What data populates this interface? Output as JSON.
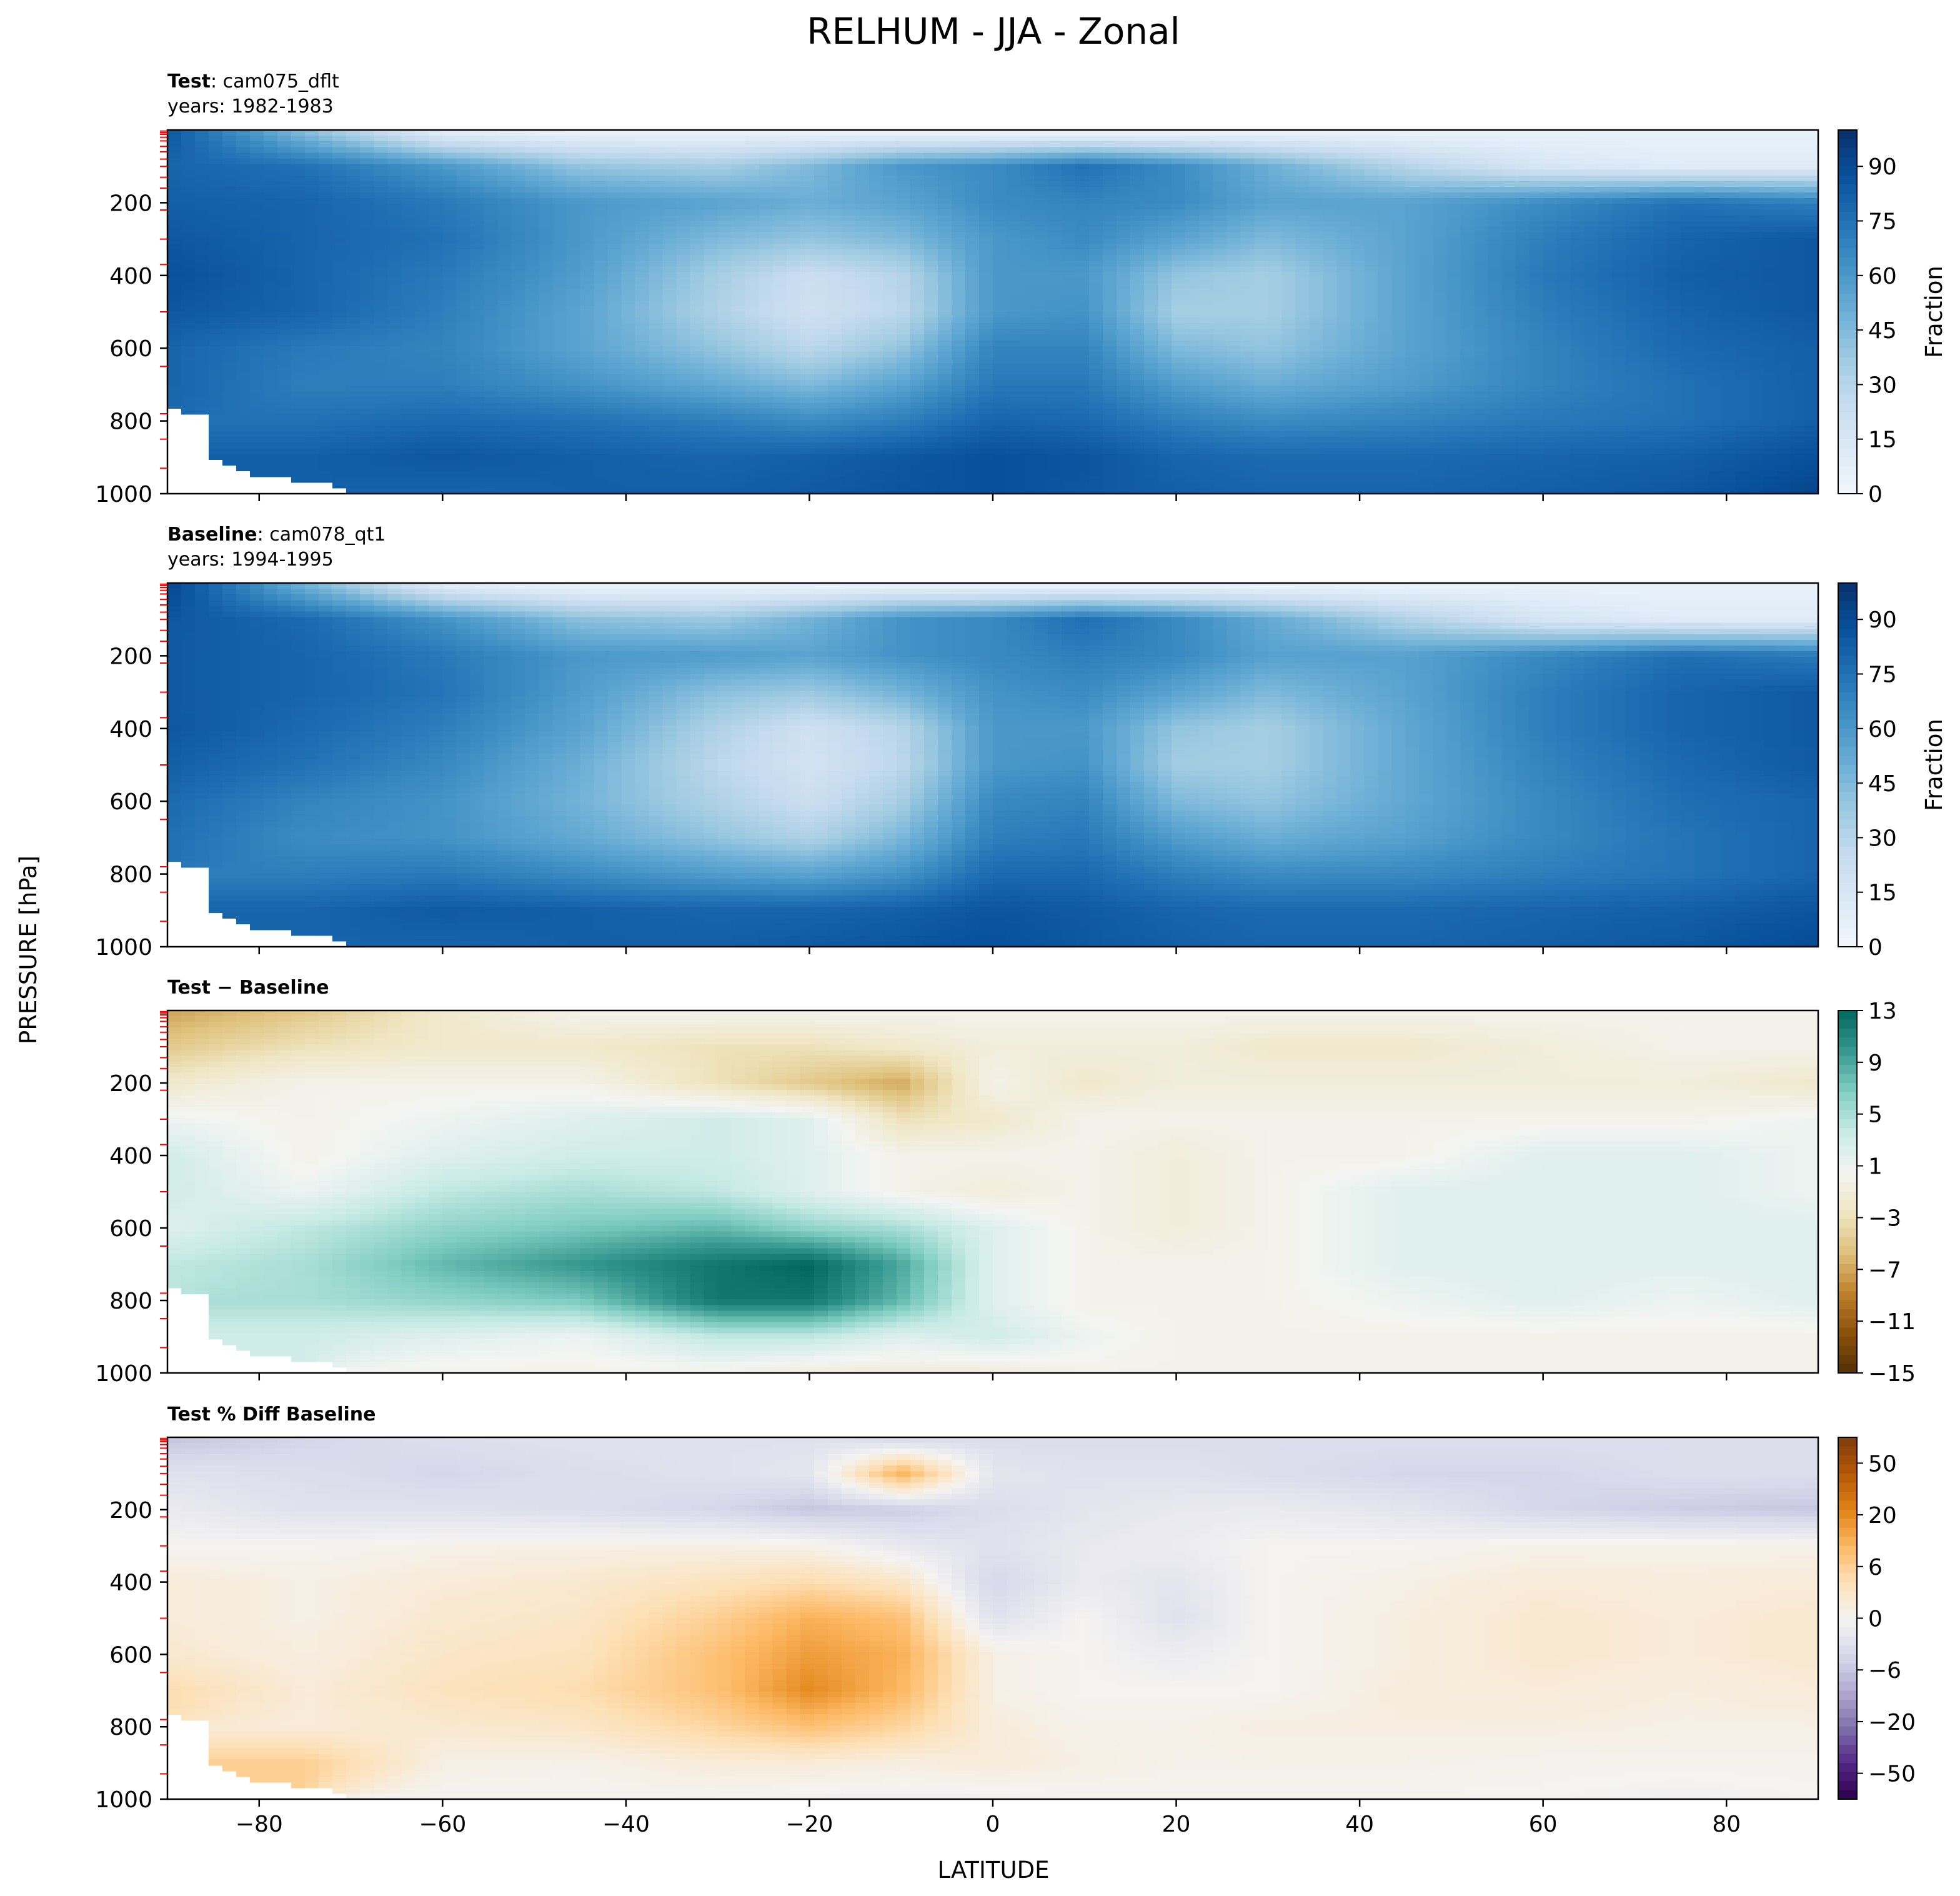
{
  "title": "RELHUM - JJA - Zonal",
  "shared_ylabel": "PRESSURE [hPa]",
  "shared_xlabel": "LATITUDE",
  "x_ticks": [
    -80,
    -60,
    -40,
    -20,
    0,
    20,
    40,
    60,
    80
  ],
  "x_tick_labels": [
    "−80",
    "−60",
    "−40",
    "−20",
    "0",
    "20",
    "40",
    "60",
    "80"
  ],
  "y_ticks": [
    200,
    400,
    600,
    800,
    1000
  ],
  "y_tick_labels": [
    "200",
    "400",
    "600",
    "800",
    "1000"
  ],
  "panels": [
    {
      "id": "test",
      "label_bold": "Test",
      "label_rest": ": cam075_dflt",
      "label_line2": "years: 1982-1983",
      "colorbar_label": "Fraction",
      "colorbar_tick_labels": [
        "0",
        "15",
        "30",
        "45",
        "60",
        "75",
        "90"
      ],
      "colormap": [
        "#f1f6fc",
        "#dbe9f6",
        "#c6dbef",
        "#9ecae1",
        "#6baed6",
        "#4292c6",
        "#2171b5",
        "#08519c",
        "#08306b"
      ]
    },
    {
      "id": "baseline",
      "label_bold": "Baseline",
      "label_rest": ": cam078_qt1",
      "label_line2": "years: 1994-1995",
      "colorbar_label": "Fraction",
      "colorbar_tick_labels": [
        "0",
        "15",
        "30",
        "45",
        "60",
        "75",
        "90"
      ],
      "colormap": [
        "#f1f6fc",
        "#dbe9f6",
        "#c6dbef",
        "#9ecae1",
        "#6baed6",
        "#4292c6",
        "#2171b5",
        "#08519c",
        "#08306b"
      ]
    },
    {
      "id": "diff",
      "label_bold": "Test − Baseline",
      "label_rest": "",
      "label_line2": "",
      "colorbar_label": "",
      "colorbar_tick_labels": [
        "−15",
        "−11",
        "−7",
        "−3",
        "1",
        "5",
        "9",
        "13"
      ],
      "colormap": [
        "#543005",
        "#8c510a",
        "#bf812d",
        "#dfc27d",
        "#f0e6c4",
        "#f3f4f2",
        "#c7eae5",
        "#80cdc1",
        "#35978f",
        "#01665e"
      ]
    },
    {
      "id": "pctdiff",
      "label_bold": "Test % Diff Baseline",
      "label_rest": "",
      "label_line2": "",
      "colorbar_label": "",
      "colorbar_tick_labels": [
        "−50",
        "−20",
        "−6",
        "0",
        "6",
        "20",
        "50"
      ],
      "colormap": [
        "#2d004b",
        "#542788",
        "#8073ac",
        "#b2abd2",
        "#d8daeb",
        "#f4f3f1",
        "#fde0b6",
        "#fdb863",
        "#e08214",
        "#b35806",
        "#7f3b08"
      ]
    }
  ],
  "chart_data": [
    {
      "type": "heatmap",
      "title": "Test: cam075_dflt, years: 1982-1983",
      "xlabel": "LATITUDE",
      "ylabel": "PRESSURE [hPa]",
      "xlim": [
        -90,
        90
      ],
      "ylim": [
        1000,
        0
      ],
      "colorbar_range": [
        0,
        100
      ],
      "colorbar_label": "Fraction",
      "x": [
        -90,
        -75,
        -60,
        -45,
        -30,
        -20,
        -10,
        0,
        10,
        20,
        30,
        45,
        60,
        75,
        90
      ],
      "y": [
        10,
        100,
        200,
        300,
        400,
        500,
        600,
        700,
        800,
        900,
        1000
      ],
      "z": [
        [
          85,
          45,
          10,
          5,
          5,
          5,
          5,
          5,
          5,
          5,
          5,
          5,
          5,
          5,
          5
        ],
        [
          80,
          75,
          60,
          40,
          35,
          45,
          60,
          65,
          75,
          65,
          50,
          30,
          15,
          10,
          10
        ],
        [
          82,
          80,
          72,
          60,
          55,
          50,
          55,
          65,
          68,
          65,
          55,
          55,
          65,
          75,
          70
        ],
        [
          85,
          80,
          75,
          60,
          45,
          40,
          45,
          60,
          65,
          55,
          45,
          55,
          70,
          80,
          85
        ],
        [
          88,
          80,
          72,
          58,
          35,
          22,
          30,
          60,
          60,
          40,
          35,
          55,
          72,
          82,
          85
        ],
        [
          85,
          80,
          70,
          55,
          32,
          20,
          28,
          60,
          62,
          35,
          35,
          55,
          70,
          80,
          85
        ],
        [
          80,
          72,
          68,
          55,
          40,
          28,
          40,
          68,
          68,
          45,
          40,
          55,
          68,
          78,
          82
        ],
        [
          80,
          70,
          70,
          62,
          52,
          45,
          55,
          72,
          72,
          58,
          50,
          58,
          68,
          75,
          82
        ],
        [
          null,
          75,
          78,
          75,
          70,
          65,
          70,
          80,
          78,
          70,
          65,
          68,
          72,
          75,
          82
        ],
        [
          null,
          82,
          85,
          82,
          80,
          82,
          85,
          88,
          86,
          80,
          78,
          78,
          80,
          82,
          88
        ],
        [
          null,
          null,
          80,
          82,
          82,
          84,
          86,
          88,
          85,
          82,
          80,
          80,
          82,
          85,
          92
        ]
      ]
    },
    {
      "type": "heatmap",
      "title": "Baseline: cam078_qt1, years: 1994-1995",
      "xlabel": "LATITUDE",
      "ylabel": "PRESSURE [hPa]",
      "xlim": [
        -90,
        90
      ],
      "ylim": [
        1000,
        0
      ],
      "colorbar_range": [
        0,
        100
      ],
      "colorbar_label": "Fraction",
      "x": [
        -90,
        -75,
        -60,
        -45,
        -30,
        -20,
        -10,
        0,
        10,
        20,
        30,
        45,
        60,
        75,
        90
      ],
      "y": [
        10,
        100,
        200,
        300,
        400,
        500,
        600,
        700,
        800,
        900,
        1000
      ],
      "z": [
        [
          92,
          50,
          12,
          5,
          5,
          5,
          5,
          5,
          5,
          5,
          5,
          5,
          5,
          5,
          5
        ],
        [
          85,
          78,
          62,
          42,
          38,
          48,
          62,
          66,
          76,
          66,
          52,
          32,
          16,
          10,
          10
        ],
        [
          84,
          80,
          72,
          60,
          58,
          55,
          62,
          66,
          70,
          66,
          56,
          56,
          66,
          76,
          72
        ],
        [
          84,
          80,
          74,
          58,
          42,
          38,
          48,
          62,
          65,
          55,
          45,
          55,
          70,
          80,
          84
        ],
        [
          85,
          78,
          70,
          55,
          32,
          20,
          30,
          60,
          60,
          40,
          35,
          53,
          70,
          80,
          84
        ],
        [
          82,
          75,
          66,
          50,
          28,
          18,
          28,
          60,
          62,
          36,
          35,
          53,
          68,
          78,
          84
        ],
        [
          78,
          68,
          62,
          48,
          32,
          22,
          35,
          66,
          68,
          45,
          40,
          53,
          66,
          76,
          80
        ],
        [
          76,
          65,
          62,
          52,
          40,
          32,
          46,
          70,
          72,
          58,
          50,
          56,
          66,
          74,
          80
        ],
        [
          null,
          70,
          72,
          65,
          58,
          55,
          62,
          78,
          78,
          70,
          65,
          66,
          70,
          74,
          80
        ],
        [
          null,
          80,
          84,
          82,
          80,
          80,
          82,
          86,
          84,
          80,
          78,
          78,
          80,
          82,
          86
        ],
        [
          null,
          null,
          80,
          82,
          82,
          84,
          86,
          88,
          85,
          82,
          80,
          80,
          82,
          85,
          90
        ]
      ]
    },
    {
      "type": "heatmap",
      "title": "Test − Baseline",
      "xlabel": "LATITUDE",
      "ylabel": "PRESSURE [hPa]",
      "xlim": [
        -90,
        90
      ],
      "ylim": [
        1000,
        0
      ],
      "colorbar_range": [
        -15,
        13
      ],
      "x": [
        -90,
        -75,
        -60,
        -45,
        -30,
        -20,
        -10,
        0,
        10,
        20,
        30,
        45,
        60,
        75,
        90
      ],
      "y": [
        10,
        100,
        200,
        300,
        400,
        500,
        600,
        700,
        800,
        900,
        1000
      ],
      "z": [
        [
          -7,
          -5,
          -2,
          0,
          0,
          0,
          0,
          0,
          0,
          0,
          0,
          0,
          0,
          0,
          0
        ],
        [
          -5,
          -3,
          -2,
          -2,
          -3,
          -3,
          -2,
          -1,
          -1,
          -1,
          -2,
          -2,
          -1,
          0,
          0
        ],
        [
          -2,
          0,
          0,
          0,
          -3,
          -5,
          -7,
          0,
          -2,
          -1,
          -1,
          -1,
          -1,
          -1,
          -2
        ],
        [
          1,
          0,
          1,
          2,
          3,
          2,
          -3,
          -2,
          0,
          0,
          0,
          0,
          0,
          0,
          1
        ],
        [
          3,
          0,
          2,
          3,
          3,
          2,
          0,
          0,
          0,
          -1,
          0,
          0,
          2,
          2,
          1
        ],
        [
          3,
          1,
          4,
          5,
          4,
          2,
          0,
          -1,
          0,
          -1,
          0,
          2,
          2,
          2,
          1
        ],
        [
          2,
          4,
          6,
          7,
          8,
          6,
          5,
          2,
          0,
          -1,
          0,
          2,
          2,
          2,
          2
        ],
        [
          4,
          5,
          8,
          10,
          12,
          13,
          9,
          2,
          0,
          0,
          0,
          2,
          2,
          2,
          2
        ],
        [
          null,
          5,
          6,
          7,
          12,
          12,
          8,
          2,
          0,
          0,
          0,
          1,
          2,
          1,
          2
        ],
        [
          null,
          3,
          2,
          1,
          4,
          4,
          2,
          3,
          1,
          0,
          0,
          0,
          0,
          0,
          0
        ],
        [
          null,
          null,
          0,
          0,
          0,
          -1,
          -1,
          -1,
          0,
          0,
          0,
          0,
          0,
          0,
          0
        ]
      ]
    },
    {
      "type": "heatmap",
      "title": "Test % Diff Baseline",
      "xlabel": "LATITUDE",
      "ylabel": "PRESSURE [hPa]",
      "xlim": [
        -90,
        90
      ],
      "ylim": [
        1000,
        0
      ],
      "colorbar_range": [
        -70,
        70
      ],
      "x": [
        -90,
        -75,
        -60,
        -45,
        -30,
        -20,
        -10,
        0,
        10,
        20,
        30,
        45,
        60,
        75,
        90
      ],
      "y": [
        10,
        100,
        200,
        300,
        400,
        500,
        600,
        700,
        800,
        900,
        1000
      ],
      "z": [
        [
          -20,
          -15,
          -12,
          -10,
          -10,
          -10,
          -12,
          -12,
          -12,
          -12,
          -12,
          -12,
          -12,
          -12,
          -12
        ],
        [
          -10,
          -12,
          -15,
          -12,
          -10,
          -8,
          30,
          -8,
          -10,
          -10,
          -12,
          -15,
          -15,
          -12,
          -12
        ],
        [
          -5,
          -10,
          -10,
          -12,
          -15,
          -20,
          -18,
          -12,
          -8,
          -6,
          -5,
          -8,
          -15,
          -18,
          -20
        ],
        [
          0,
          0,
          2,
          3,
          3,
          2,
          -6,
          -10,
          -6,
          -4,
          0,
          0,
          2,
          2,
          2
        ],
        [
          6,
          3,
          6,
          8,
          12,
          15,
          10,
          -15,
          -5,
          -8,
          0,
          3,
          6,
          5,
          6
        ],
        [
          6,
          3,
          8,
          10,
          20,
          30,
          25,
          -10,
          0,
          -10,
          0,
          4,
          8,
          6,
          8
        ],
        [
          8,
          4,
          10,
          12,
          25,
          35,
          30,
          3,
          0,
          -4,
          0,
          4,
          8,
          6,
          8
        ],
        [
          15,
          6,
          12,
          15,
          25,
          40,
          28,
          3,
          0,
          0,
          0,
          5,
          6,
          4,
          6
        ],
        [
          null,
          6,
          8,
          10,
          18,
          25,
          18,
          5,
          2,
          2,
          4,
          4,
          4,
          3,
          3
        ],
        [
          null,
          20,
          3,
          2,
          6,
          6,
          4,
          6,
          3,
          2,
          2,
          2,
          1,
          1,
          1
        ],
        [
          null,
          null,
          0,
          0,
          0,
          -2,
          -2,
          -2,
          0,
          0,
          0,
          0,
          0,
          -2,
          0
        ]
      ]
    }
  ]
}
